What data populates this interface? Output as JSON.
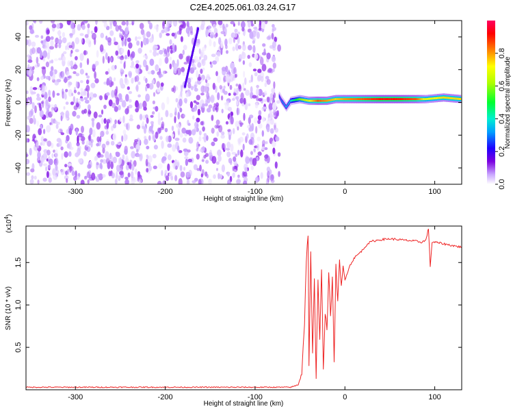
{
  "title": "C2E4.2025.061.03.24.G17",
  "chart_data": [
    {
      "type": "heatmap",
      "title": "C2E4.2025.061.03.24.G17",
      "xlabel": "Height of straight line (km)",
      "ylabel": "Frequency (Hz)",
      "xlim": [
        -355,
        130
      ],
      "ylim": [
        -50,
        50
      ],
      "x_ticks": [
        -300,
        -200,
        -100,
        0,
        100
      ],
      "y_ticks": [
        -40,
        -20,
        0,
        20,
        40
      ],
      "colorbar": {
        "label": "Normalized spectral amplitude",
        "range": [
          0.0,
          1.0
        ],
        "ticks": [
          0.0,
          0.2,
          0.4,
          0.6,
          0.8
        ],
        "colormap": [
          "#ffffff",
          "#c9a6ff",
          "#7b00e0",
          "#1d00ff",
          "#00a0ff",
          "#00f0d0",
          "#00ff30",
          "#b0ff00",
          "#ffff00",
          "#ff8000",
          "#ff0000",
          "#ff0060"
        ]
      },
      "noise_region": {
        "x_range": [
          -355,
          -73
        ],
        "amplitude": [
          0.0,
          0.15
        ]
      },
      "signal_trace": {
        "x_range": [
          -73,
          130
        ],
        "frequency_hz": [
          4,
          1,
          -3,
          1,
          2,
          1,
          1,
          1,
          2,
          2,
          2,
          2,
          2,
          2,
          2,
          3,
          2
        ],
        "x": [
          -73,
          -70,
          -65,
          -60,
          -50,
          -40,
          -30,
          -20,
          -10,
          0,
          20,
          40,
          60,
          80,
          90,
          110,
          130
        ],
        "amplitude": [
          0.3,
          0.35,
          0.4,
          0.45,
          0.6,
          0.7,
          0.85,
          0.8,
          0.75,
          0.8,
          0.85,
          0.9,
          0.9,
          0.85,
          0.7,
          0.75,
          0.75
        ]
      },
      "grid": false
    },
    {
      "type": "line",
      "xlabel": "Height of straight line (km)",
      "ylabel": "SNR (10 * v/v)",
      "multiplier_label": "(x10",
      "multiplier_exponent": "4",
      "xlim": [
        -355,
        130
      ],
      "ylim": [
        0,
        1.93
      ],
      "x_ticks": [
        -300,
        -200,
        -100,
        0,
        100
      ],
      "y_ticks": [
        0.5,
        1.0,
        1.5
      ],
      "y_tick_labels": [
        "0.5",
        "1.0",
        "1.5"
      ],
      "series": [
        {
          "color": "#ee2222",
          "x": [
            -355,
            -300,
            -250,
            -200,
            -150,
            -100,
            -60,
            -52,
            -48,
            -45,
            -43,
            -41,
            -40,
            -38,
            -36,
            -34,
            -32,
            -30,
            -28,
            -26,
            -24,
            -22,
            -20,
            -18,
            -16,
            -14,
            -12,
            -10,
            -8,
            -6,
            -4,
            -2,
            0,
            5,
            10,
            15,
            20,
            25,
            30,
            40,
            50,
            60,
            70,
            80,
            85,
            90,
            93,
            95,
            97,
            100,
            110,
            120,
            130
          ],
          "y": [
            0.03,
            0.03,
            0.03,
            0.03,
            0.03,
            0.03,
            0.03,
            0.06,
            0.2,
            0.8,
            1.5,
            1.85,
            0.3,
            1.6,
            0.4,
            1.3,
            0.1,
            1.3,
            0.6,
            1.45,
            0.25,
            0.9,
            0.7,
            1.35,
            0.9,
            1.3,
            0.35,
            1.45,
            1.05,
            1.5,
            1.2,
            1.45,
            1.3,
            1.45,
            1.55,
            1.6,
            1.65,
            1.72,
            1.75,
            1.77,
            1.78,
            1.77,
            1.76,
            1.75,
            1.74,
            1.76,
            1.9,
            1.45,
            1.74,
            1.74,
            1.72,
            1.7,
            1.68
          ]
        }
      ],
      "grid": false
    }
  ]
}
